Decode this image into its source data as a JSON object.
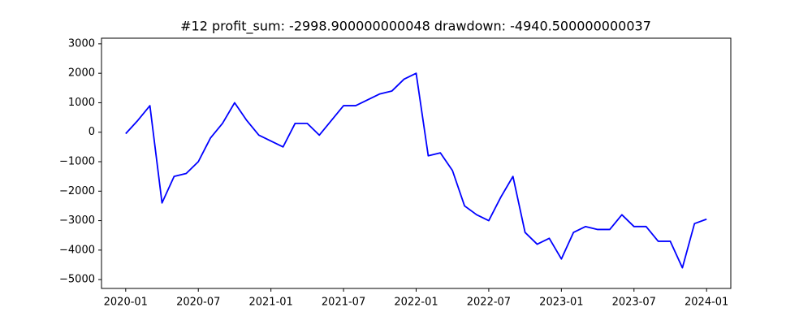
{
  "chart_data": {
    "type": "line",
    "title": "#12   profit_sum: -2998.900000000048 drawdown: -4940.500000000037",
    "x": [
      "2020-01",
      "2020-02",
      "2020-03",
      "2020-04",
      "2020-05",
      "2020-06",
      "2020-07",
      "2020-08",
      "2020-09",
      "2020-10",
      "2020-11",
      "2020-12",
      "2021-01",
      "2021-02",
      "2021-03",
      "2021-04",
      "2021-05",
      "2021-06",
      "2021-07",
      "2021-08",
      "2021-09",
      "2021-10",
      "2021-11",
      "2021-12",
      "2022-01",
      "2022-02",
      "2022-03",
      "2022-04",
      "2022-05",
      "2022-06",
      "2022-07",
      "2022-08",
      "2022-09",
      "2022-10",
      "2022-11",
      "2022-12",
      "2023-01",
      "2023-02",
      "2023-03",
      "2023-04",
      "2023-05",
      "2023-06",
      "2023-07",
      "2023-08",
      "2023-09",
      "2023-10",
      "2023-11",
      "2023-12",
      "2024-01"
    ],
    "series": [
      {
        "color": "#0000ff",
        "values": [
          -50,
          400,
          900,
          -2400,
          -1500,
          -1400,
          -1000,
          -200,
          300,
          1000,
          400,
          -100,
          -300,
          -500,
          300,
          300,
          -100,
          400,
          900,
          900,
          1100,
          1300,
          1400,
          1800,
          2000,
          -800,
          -700,
          -1300,
          -2500,
          -2800,
          -3000,
          -2200,
          -1500,
          -3400,
          -3800,
          -3600,
          -4300,
          -3400,
          -3200,
          -3300,
          -3300,
          -2800,
          -3200,
          -3200,
          -3700,
          -3700,
          -4600,
          -3100,
          -2950
        ]
      }
    ],
    "xlim": [
      "2019-11",
      "2024-03"
    ],
    "xticks": [
      "2020-01",
      "2020-07",
      "2021-01",
      "2021-07",
      "2022-01",
      "2022-07",
      "2023-01",
      "2023-07",
      "2024-01"
    ],
    "ylim": [
      -5300,
      3190
    ],
    "yticks": [
      {
        "value": -5000,
        "label": "−5000"
      },
      {
        "value": -4000,
        "label": "−4000"
      },
      {
        "value": -3000,
        "label": "−3000"
      },
      {
        "value": -2000,
        "label": "−2000"
      },
      {
        "value": -1000,
        "label": "−1000"
      },
      0,
      1000,
      2000,
      3000
    ],
    "grid": false
  }
}
